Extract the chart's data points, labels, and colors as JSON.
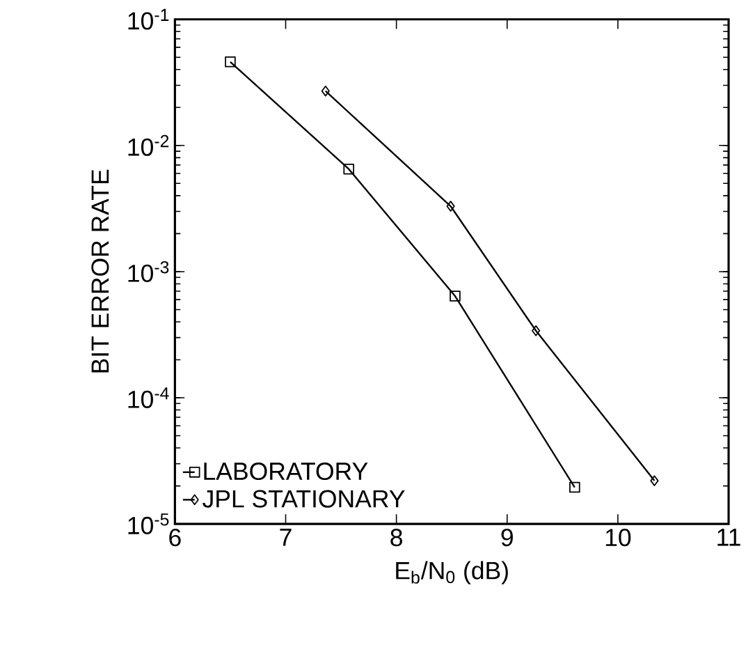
{
  "chart_data": {
    "type": "line",
    "xlabel": "E$_{b}$/N$_{0}$  (dB)",
    "ylabel": "BIT ERROR RATE",
    "log": "y",
    "legend": "bottom left",
    "grid": false,
    "line_style": "solid",
    "xlim": [
      6,
      11
    ],
    "xticks": [
      6,
      7,
      8,
      9,
      10,
      11
    ],
    "ylim": [
      1e-05,
      0.1
    ],
    "yticks": [
      {
        "value": 1e-05,
        "label": "10$^{-5}$"
      },
      {
        "value": 0.0001,
        "label": "10$^{-4}$"
      },
      {
        "value": 0.001,
        "label": "10$^{-3}$"
      },
      {
        "value": 0.01,
        "label": "10$^{-2}$"
      },
      {
        "value": 0.1,
        "label": "10$^{-1}$"
      }
    ],
    "series": [
      {
        "name": "LABORATORY",
        "color": "#000000",
        "marker": "square",
        "x": [
          6.5,
          7.57,
          8.53,
          9.61
        ],
        "values": [
          0.046,
          0.0065,
          0.00064,
          1.95e-05
        ]
      },
      {
        "name": "JPL STATIONARY",
        "color": "#000000",
        "marker": "diamond",
        "x": [
          7.36,
          8.49,
          9.26,
          10.33
        ],
        "values": [
          0.027,
          0.0033,
          0.00034,
          2.2e-05
        ]
      }
    ]
  }
}
